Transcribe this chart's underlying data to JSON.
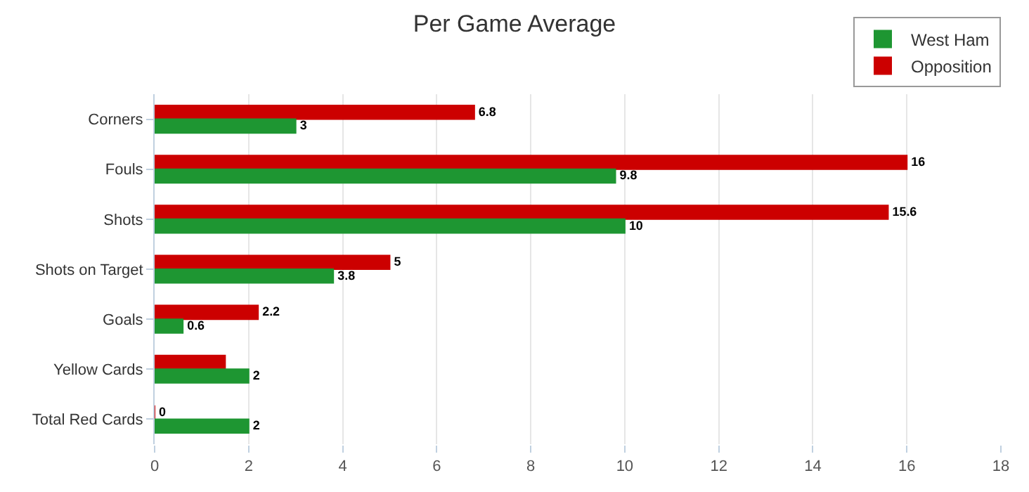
{
  "chart_data": {
    "type": "bar",
    "orientation": "horizontal",
    "title": "Per Game Average",
    "categories": [
      "Corners",
      "Fouls",
      "Shots",
      "Shots on Target",
      "Goals",
      "Yellow Cards",
      "Total Red Cards"
    ],
    "series": [
      {
        "name": "West Ham",
        "color": "#1e9632",
        "values": [
          3,
          9.8,
          10,
          3.8,
          0.6,
          2,
          2
        ],
        "value_labels": [
          "3",
          "9.8",
          "10",
          "3.8",
          "0.6",
          "2",
          "2"
        ]
      },
      {
        "name": "Opposition",
        "color": "#cc0000",
        "values": [
          6.8,
          16,
          15.6,
          5,
          2.2,
          1.5,
          0
        ],
        "value_labels": [
          "6.8",
          "16",
          "15.6",
          "5",
          "2.2",
          null,
          "0"
        ]
      }
    ],
    "xlim": [
      0,
      18
    ],
    "xticks": [
      0,
      2,
      4,
      6,
      8,
      10,
      12,
      14,
      16,
      18
    ],
    "grid": "x",
    "legend": "top right"
  }
}
